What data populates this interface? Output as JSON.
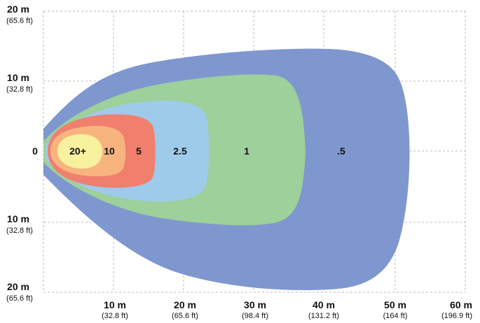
{
  "y_axis": [
    {
      "primary": "20 m",
      "secondary": "(65.6 ft)"
    },
    {
      "primary": "10 m",
      "secondary": "(32.8 ft)"
    },
    {
      "primary": "0",
      "secondary": ""
    },
    {
      "primary": "10 m",
      "secondary": "(32.8 ft)"
    },
    {
      "primary": "20 m",
      "secondary": "(65.6 ft)"
    }
  ],
  "x_axis": [
    {
      "primary": "10 m",
      "secondary": "(32.8 ft)"
    },
    {
      "primary": "20 m",
      "secondary": "(65.6 ft)"
    },
    {
      "primary": "30 m",
      "secondary": "(98.4 ft)"
    },
    {
      "primary": "40 m",
      "secondary": "(131.2 ft)"
    },
    {
      "primary": "50 m",
      "secondary": "(164 ft)"
    },
    {
      "primary": "60 m",
      "secondary": "(196.9 ft)"
    }
  ],
  "zones": [
    {
      "label": ".5",
      "color": "#7f97cf"
    },
    {
      "label": "1",
      "color": "#9dd09b"
    },
    {
      "label": "2.5",
      "color": "#9fcbea"
    },
    {
      "label": "5",
      "color": "#f07f6e"
    },
    {
      "label": "10",
      "color": "#f7b47f"
    },
    {
      "label": "20+",
      "color": "#f8f19e"
    }
  ]
}
